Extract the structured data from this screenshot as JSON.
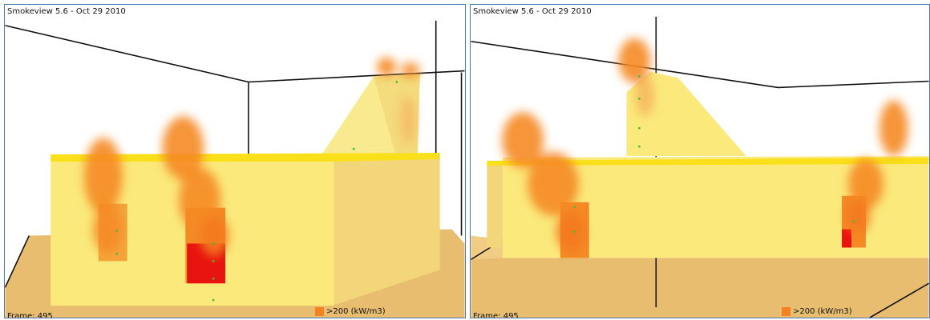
{
  "left_view": {
    "title": "Smokeview 5.6 - Oct 29 2010",
    "frame_label": "Frame: 495",
    "legend_text": ">200 (kW/m3)"
  },
  "right_view": {
    "title": "Smokeview 5.6 - Oct 29 2010",
    "frame_label": "Frame: 495",
    "legend_text": ">200 (kW/m3)"
  },
  "colors": {
    "wall_front": "#fbe97c",
    "wall_side": "#f4d67a",
    "roof_edge": "#f9e01a",
    "floor": "#e8bd70",
    "fire_orange": "#f58a25",
    "fire_red": "#e81410",
    "legend_swatch": "#f58220",
    "frame_border": "#4a78b5"
  }
}
